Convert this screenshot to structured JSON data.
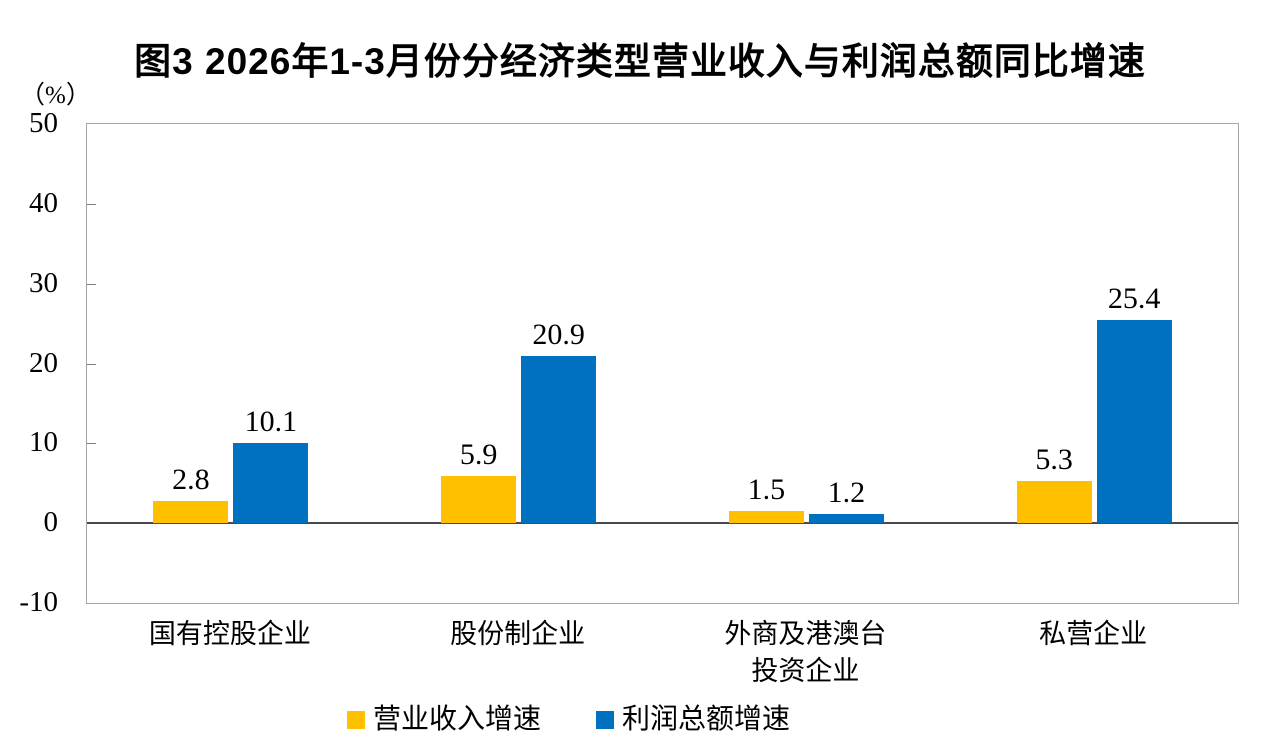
{
  "chart": {
    "title": "图3 2026年1-3月份分经济类型营业收入与利润总额同比增速",
    "unit_label": "（%）"
  },
  "chart_data": {
    "type": "bar",
    "title": "图3 2026年1-3月份分经济类型营业收入与利润总额同比增速",
    "unit": "%",
    "categories": [
      "国有控股企业",
      "股份制企业",
      "外商及港澳台\n投资企业",
      "私营企业"
    ],
    "series": [
      {
        "name": "营业收入增速",
        "color": "#FFC000",
        "values": [
          2.8,
          5.9,
          1.5,
          5.3
        ]
      },
      {
        "name": "利润总额增速",
        "color": "#0070C0",
        "values": [
          10.1,
          20.9,
          1.2,
          25.4
        ]
      }
    ],
    "ylim": [
      -10,
      50
    ],
    "yticks": [
      50,
      40,
      30,
      20,
      10,
      0,
      -10
    ],
    "ytick_step": 10,
    "xlabel": "",
    "ylabel": "（%）",
    "grid": false,
    "data_labels": true,
    "legend_position": "bottom",
    "frame_color": "#a6a6a6",
    "zero_line_color": "#4a4a4a"
  }
}
